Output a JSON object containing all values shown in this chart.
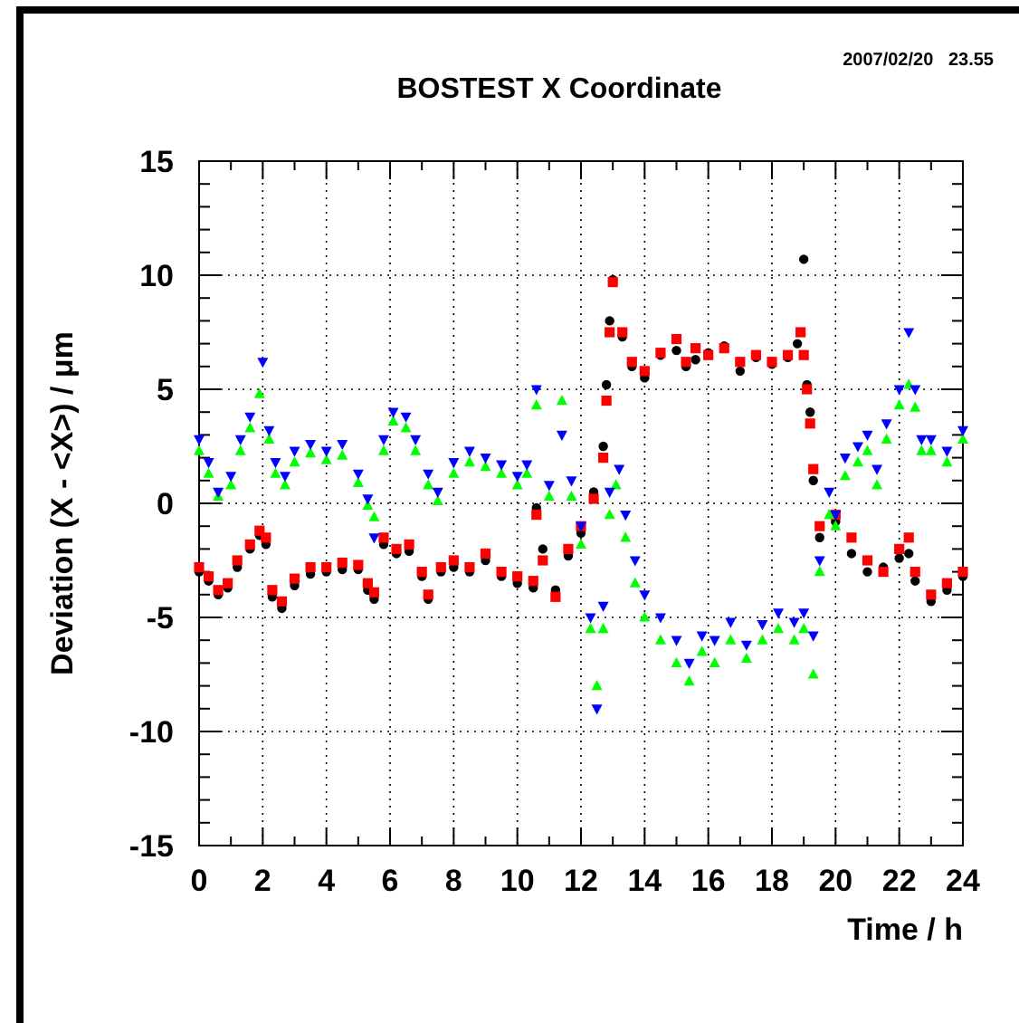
{
  "chart_data": {
    "type": "scatter",
    "title": "BOSTEST X Coordinate",
    "xlabel": "Time / h",
    "ylabel": "Deviation (X - <X>) / μm",
    "annotations": [
      "2007/02/20   23.55"
    ],
    "xlim": [
      0,
      24
    ],
    "ylim": [
      -15,
      15
    ],
    "xticks": [
      0,
      {
        "value": 1,
        "label": null
      },
      2,
      {
        "value": 3,
        "label": null
      },
      4,
      {
        "value": 5,
        "label": null
      },
      6,
      {
        "value": 7,
        "label": null
      },
      8,
      {
        "value": 9,
        "label": null
      },
      10,
      {
        "value": 11,
        "label": null
      },
      12,
      {
        "value": 13,
        "label": null
      },
      14,
      {
        "value": 15,
        "label": null
      },
      16,
      {
        "value": 17,
        "label": null
      },
      18,
      {
        "value": 19,
        "label": null
      },
      20,
      {
        "value": 21,
        "label": null
      },
      22,
      {
        "value": 23,
        "label": null
      },
      24
    ],
    "yticks": [
      -15,
      {
        "value": -14,
        "label": null
      },
      {
        "value": -13,
        "label": null
      },
      {
        "value": -12,
        "label": null
      },
      {
        "value": -11,
        "label": null
      },
      -10,
      {
        "value": -9,
        "label": null
      },
      {
        "value": -8,
        "label": null
      },
      {
        "value": -7,
        "label": null
      },
      {
        "value": -6,
        "label": null
      },
      -5,
      {
        "value": -4,
        "label": null
      },
      {
        "value": -3,
        "label": null
      },
      {
        "value": -2,
        "label": null
      },
      {
        "value": -1,
        "label": null
      },
      0,
      {
        "value": 1,
        "label": null
      },
      {
        "value": 2,
        "label": null
      },
      {
        "value": 3,
        "label": null
      },
      {
        "value": 4,
        "label": null
      },
      5,
      {
        "value": 6,
        "label": null
      },
      {
        "value": 7,
        "label": null
      },
      {
        "value": 8,
        "label": null
      },
      {
        "value": 9,
        "label": null
      },
      10,
      {
        "value": 11,
        "label": null
      },
      {
        "value": 12,
        "label": null
      },
      {
        "value": 13,
        "label": null
      },
      {
        "value": 14,
        "label": null
      },
      15
    ],
    "grid": true,
    "series": [
      {
        "color": "#000000",
        "marker": "circle",
        "x": [
          0,
          0.3,
          0.6,
          0.9,
          1.2,
          1.6,
          1.9,
          2.1,
          2.3,
          2.6,
          3.0,
          3.5,
          4.0,
          4.5,
          5.0,
          5.3,
          5.5,
          5.8,
          6.2,
          6.6,
          7.0,
          7.2,
          7.6,
          8.0,
          8.5,
          9.0,
          9.5,
          10.0,
          10.5,
          10.6,
          10.8,
          11.2,
          11.6,
          12.0,
          12.4,
          12.7,
          12.8,
          12.9,
          13.0,
          13.3,
          13.6,
          14.0,
          14.5,
          15.0,
          15.3,
          15.6,
          16.0,
          16.5,
          17.0,
          17.5,
          18.0,
          18.5,
          18.8,
          19.0,
          19.1,
          19.2,
          19.3,
          19.5,
          20.0,
          20.5,
          21.0,
          21.5,
          22.0,
          22.3,
          22.5,
          23.0,
          23.5,
          24.0
        ],
        "values": [
          -3.0,
          -3.4,
          -4.0,
          -3.7,
          -2.8,
          -2.0,
          -1.4,
          -1.8,
          -4.1,
          -4.6,
          -3.6,
          -3.1,
          -3.0,
          -2.9,
          -2.9,
          -3.8,
          -4.2,
          -1.8,
          -2.2,
          -2.1,
          -3.2,
          -4.2,
          -3.0,
          -2.8,
          -3.0,
          -2.5,
          -3.2,
          -3.5,
          -3.7,
          -0.2,
          -2.0,
          -3.8,
          -2.3,
          -1.3,
          0.5,
          2.5,
          5.2,
          8.0,
          9.8,
          7.3,
          6.0,
          5.5,
          6.5,
          6.7,
          6.0,
          6.3,
          6.6,
          6.9,
          5.8,
          6.4,
          6.1,
          6.4,
          7.0,
          10.7,
          5.2,
          4.0,
          1.0,
          -1.5,
          -0.8,
          -2.2,
          -3.0,
          -2.8,
          -2.4,
          -2.2,
          -3.4,
          -4.3,
          -3.8,
          -3.2
        ]
      },
      {
        "color": "#ff0000",
        "marker": "square",
        "x": [
          0,
          0.3,
          0.6,
          0.9,
          1.2,
          1.6,
          1.9,
          2.1,
          2.3,
          2.6,
          3.0,
          3.5,
          4.0,
          4.5,
          5.0,
          5.3,
          5.5,
          5.8,
          6.2,
          6.6,
          7.0,
          7.2,
          7.6,
          8.0,
          8.5,
          9.0,
          9.5,
          10.0,
          10.5,
          10.6,
          10.8,
          11.2,
          11.6,
          12.0,
          12.4,
          12.7,
          12.8,
          12.9,
          13.0,
          13.3,
          13.6,
          14.0,
          14.5,
          15.0,
          15.3,
          15.6,
          16.0,
          16.5,
          17.0,
          17.5,
          18.0,
          18.5,
          18.9,
          19.0,
          19.1,
          19.2,
          19.3,
          19.5,
          20.0,
          20.5,
          21.0,
          21.5,
          22.0,
          22.3,
          22.5,
          23.0,
          23.5,
          24.0
        ],
        "values": [
          -2.8,
          -3.2,
          -3.8,
          -3.5,
          -2.5,
          -1.8,
          -1.2,
          -1.5,
          -3.8,
          -4.3,
          -3.3,
          -2.8,
          -2.8,
          -2.6,
          -2.7,
          -3.5,
          -3.9,
          -1.5,
          -2.0,
          -1.8,
          -3.0,
          -4.0,
          -2.8,
          -2.5,
          -2.8,
          -2.2,
          -3.0,
          -3.2,
          -3.4,
          -0.5,
          -2.5,
          -4.1,
          -2.0,
          -1.0,
          0.2,
          2.0,
          4.5,
          7.5,
          9.7,
          7.5,
          6.2,
          5.8,
          6.6,
          7.2,
          6.2,
          6.8,
          6.5,
          6.8,
          6.2,
          6.5,
          6.2,
          6.5,
          7.5,
          6.5,
          5.0,
          3.5,
          1.5,
          -1.0,
          -0.5,
          -1.5,
          -2.5,
          -3.0,
          -2.0,
          -1.5,
          -3.0,
          -4.0,
          -3.5,
          -3.0
        ]
      },
      {
        "color": "#00ff00",
        "marker": "triangle",
        "x": [
          0,
          0.3,
          0.6,
          1.0,
          1.3,
          1.6,
          1.9,
          2.2,
          2.4,
          2.7,
          3.0,
          3.5,
          4.0,
          4.5,
          5.0,
          5.3,
          5.5,
          5.8,
          6.1,
          6.5,
          6.8,
          7.2,
          7.5,
          8.0,
          8.5,
          9.0,
          9.5,
          10.0,
          10.3,
          10.6,
          11.0,
          11.4,
          11.7,
          12.0,
          12.3,
          12.5,
          12.7,
          12.9,
          13.1,
          13.4,
          13.7,
          14.0,
          14.5,
          15.0,
          15.4,
          15.8,
          16.2,
          16.7,
          17.2,
          17.7,
          18.2,
          18.7,
          19.0,
          19.3,
          19.5,
          19.8,
          20.0,
          20.3,
          20.7,
          21.0,
          21.3,
          21.6,
          22.0,
          22.3,
          22.5,
          22.7,
          23.0,
          23.5,
          24.0
        ],
        "values": [
          2.3,
          1.3,
          0.3,
          0.8,
          2.3,
          3.3,
          4.8,
          2.8,
          1.3,
          0.8,
          1.8,
          2.2,
          1.9,
          2.1,
          0.9,
          -0.1,
          -0.6,
          2.3,
          3.6,
          3.3,
          2.3,
          0.8,
          0.1,
          1.3,
          1.8,
          1.6,
          1.3,
          0.8,
          1.3,
          4.3,
          0.3,
          4.5,
          0.3,
          -1.8,
          -5.5,
          -8.0,
          -5.5,
          -0.5,
          0.8,
          -1.5,
          -3.5,
          -5.0,
          -6.0,
          -7.0,
          -7.8,
          -6.5,
          -7.0,
          -6.0,
          -6.8,
          -6.0,
          -5.5,
          -6.0,
          -5.5,
          -7.5,
          -3.0,
          -0.5,
          -1.0,
          1.2,
          1.8,
          2.3,
          0.8,
          2.8,
          4.3,
          5.2,
          4.2,
          2.3,
          2.3,
          1.8,
          2.8
        ]
      },
      {
        "color": "#0000ff",
        "marker": "triangle-down",
        "x": [
          0,
          0.3,
          0.6,
          1.0,
          1.3,
          1.6,
          2.0,
          2.2,
          2.4,
          2.7,
          3.0,
          3.5,
          4.0,
          4.5,
          5.0,
          5.3,
          5.5,
          5.8,
          6.1,
          6.5,
          6.8,
          7.2,
          7.5,
          8.0,
          8.5,
          9.0,
          9.5,
          10.0,
          10.3,
          10.6,
          11.0,
          11.4,
          11.7,
          12.0,
          12.3,
          12.5,
          12.7,
          12.9,
          13.2,
          13.4,
          13.7,
          14.0,
          14.5,
          15.0,
          15.4,
          15.8,
          16.2,
          16.7,
          17.2,
          17.7,
          18.2,
          18.7,
          19.0,
          19.3,
          19.5,
          19.8,
          20.0,
          20.3,
          20.7,
          21.0,
          21.3,
          21.6,
          22.0,
          22.3,
          22.5,
          22.7,
          23.0,
          23.5,
          24.0
        ],
        "values": [
          2.8,
          1.8,
          0.5,
          1.2,
          2.8,
          3.8,
          6.2,
          3.2,
          1.8,
          1.2,
          2.3,
          2.6,
          2.3,
          2.6,
          1.3,
          0.2,
          -1.5,
          2.8,
          4.0,
          3.8,
          2.8,
          1.3,
          0.5,
          1.8,
          2.3,
          2.0,
          1.7,
          1.2,
          1.7,
          5.0,
          0.8,
          3.0,
          1.0,
          -1.0,
          -5.0,
          -9.0,
          -4.5,
          0.5,
          1.5,
          -0.5,
          -2.5,
          -4.0,
          -5.0,
          -6.0,
          -7.0,
          -5.8,
          -6.0,
          -5.2,
          -6.2,
          -5.3,
          -4.8,
          -5.2,
          -4.8,
          -5.8,
          -2.5,
          0.5,
          -0.5,
          2.0,
          2.5,
          3.0,
          1.5,
          3.5,
          5.0,
          7.5,
          5.0,
          2.8,
          2.8,
          2.3,
          3.2
        ]
      }
    ]
  }
}
